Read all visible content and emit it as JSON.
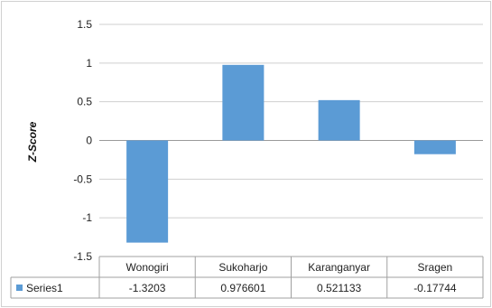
{
  "chart_data": {
    "type": "bar",
    "categories": [
      "Wonogiri",
      "Sukoharjo",
      "Karanganyar",
      "Sragen"
    ],
    "series": [
      {
        "name": "Series1",
        "values": [
          -1.3203,
          0.976601,
          0.521133,
          -0.17744
        ],
        "display_values": [
          "-1.3203",
          "0.976601",
          "0.521133",
          "-0.17744"
        ],
        "color": "#5b9bd5"
      }
    ],
    "ylabel": "Z-Score",
    "ylim": [
      -1.5,
      1.5
    ],
    "yticks": [
      1.5,
      1,
      0.5,
      0,
      -0.5,
      -1,
      -1.5
    ],
    "ytick_labels": [
      "1.5",
      "1",
      "0.5",
      "0",
      "-0.5",
      "-1",
      "-1.5"
    ],
    "grid": true,
    "data_table": true,
    "legend": "in-data-table"
  }
}
